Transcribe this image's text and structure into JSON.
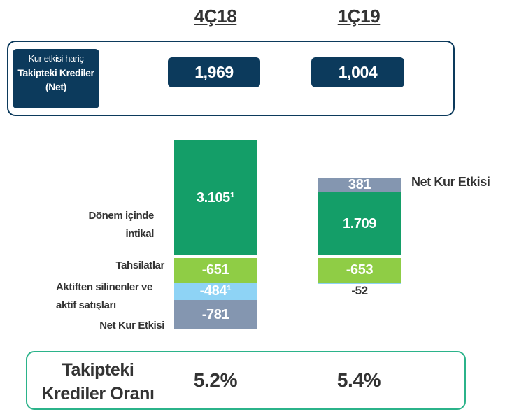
{
  "chart_data": {
    "type": "bar",
    "categories": [
      "4Ç18",
      "1Ç19"
    ],
    "series": [
      {
        "name": "Dönem içinde intikal",
        "color": "#149e68",
        "values": [
          3105,
          1709
        ],
        "value_labels": [
          "3.105¹",
          "1.709"
        ]
      },
      {
        "name": "Tahsilatlar",
        "color": "#8fcd45",
        "values": [
          -651,
          -653
        ]
      },
      {
        "name": "Aktiften silinenler ve aktif satışları",
        "color": "#8ed3f5",
        "values": [
          -484,
          -52
        ],
        "value_labels": [
          "-484¹",
          "-52"
        ]
      },
      {
        "name": "Net Kur Etkisi",
        "color": "#8496b0",
        "values": [
          -781,
          381
        ]
      }
    ]
  },
  "top_box": {
    "label_line1": "Kur etkisi hariç",
    "label_line2": "Takipteki Krediler (Net)",
    "values": [
      "1,969",
      "1,004"
    ]
  },
  "ratio_box": {
    "label": "Takipteki Krediler Oranı",
    "values": [
      "5.2%",
      "5.4%"
    ]
  }
}
